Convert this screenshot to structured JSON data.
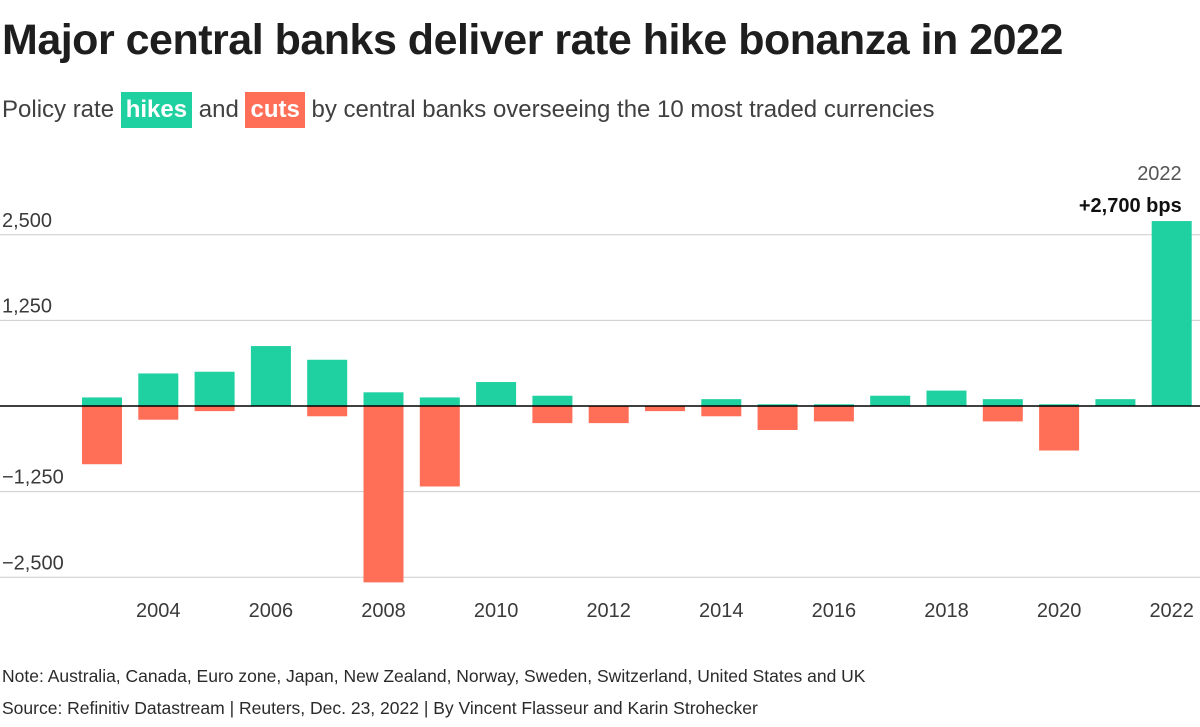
{
  "title": "Major central banks deliver rate hike bonanza in 2022",
  "subtitle": {
    "before": "Policy rate",
    "hikes_label": "hikes",
    "middle": "and",
    "cuts_label": "cuts",
    "after": "by central banks overseeing the 10 most traded currencies"
  },
  "colors": {
    "hikes": "#1fd0a0",
    "cuts": "#ff6f57",
    "grid": "#cccccc",
    "baseline": "#000000"
  },
  "chart_data": {
    "type": "bar",
    "stacking": "diverging",
    "categories": [
      "2003",
      "2004",
      "2005",
      "2006",
      "2007",
      "2008",
      "2009",
      "2010",
      "2011",
      "2012",
      "2013",
      "2014",
      "2015",
      "2016",
      "2017",
      "2018",
      "2019",
      "2020",
      "2021",
      "2022"
    ],
    "x_tick_labels": [
      "2004",
      "2006",
      "2008",
      "2010",
      "2012",
      "2014",
      "2016",
      "2018",
      "2020",
      "2022"
    ],
    "series": [
      {
        "name": "hikes",
        "values": [
          125,
          475,
          500,
          875,
          675,
          200,
          125,
          350,
          150,
          0,
          0,
          100,
          25,
          25,
          150,
          225,
          100,
          25,
          100,
          2700
        ]
      },
      {
        "name": "cuts",
        "values": [
          -850,
          -200,
          -75,
          0,
          -150,
          -2575,
          -1175,
          0,
          -250,
          -250,
          -75,
          -150,
          -350,
          -225,
          0,
          0,
          -225,
          -650,
          0,
          0
        ]
      }
    ],
    "y_ticks": [
      2500,
      1250,
      0,
      -1250,
      -2500
    ],
    "y_tick_labels": [
      "2,500",
      "1,250",
      "",
      "−1,250",
      "−2,500"
    ],
    "ylim": [
      -2650,
      2750
    ],
    "title": "Major central banks deliver rate hike bonanza in 2022",
    "xlabel": "",
    "ylabel": "",
    "annotation": {
      "year": "2022",
      "value_label": "+2,700 bps"
    }
  },
  "footer": {
    "note": "Note: Australia, Canada, Euro zone, Japan, New Zealand, Norway, Sweden, Switzerland, United States and UK",
    "source": "Source: Refinitiv Datastream | Reuters, Dec. 23, 2022 | By Vincent Flasseur and Karin Strohecker"
  }
}
